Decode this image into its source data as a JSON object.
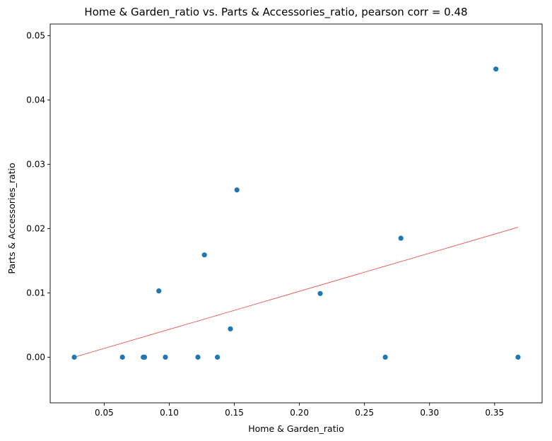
{
  "chart_data": {
    "type": "scatter",
    "title": "Home & Garden_ratio vs. Parts & Accessories_ratio, pearson corr = 0.48",
    "xlabel": "Home & Garden_ratio",
    "ylabel": "Parts & Accessories_ratio",
    "xlim": [
      0.0085,
      0.3865
    ],
    "ylim": [
      -0.0071,
      0.0518
    ],
    "x_ticks": [
      "0.05",
      "0.10",
      "0.15",
      "0.20",
      "0.25",
      "0.30",
      "0.35"
    ],
    "y_ticks": [
      "0.00",
      "0.01",
      "0.02",
      "0.03",
      "0.04",
      "0.05"
    ],
    "grid": false,
    "point_color": "#1f77b4",
    "trend_color": "#e8554e",
    "points": [
      {
        "x": 0.027,
        "y": 0.0
      },
      {
        "x": 0.064,
        "y": 0.0
      },
      {
        "x": 0.08,
        "y": 0.0
      },
      {
        "x": 0.081,
        "y": 0.0
      },
      {
        "x": 0.092,
        "y": 0.0103
      },
      {
        "x": 0.097,
        "y": 0.0
      },
      {
        "x": 0.122,
        "y": 0.0
      },
      {
        "x": 0.127,
        "y": 0.0159
      },
      {
        "x": 0.137,
        "y": 0.0
      },
      {
        "x": 0.147,
        "y": 0.0044
      },
      {
        "x": 0.152,
        "y": 0.026
      },
      {
        "x": 0.216,
        "y": 0.0099
      },
      {
        "x": 0.266,
        "y": 0.0
      },
      {
        "x": 0.278,
        "y": 0.0185
      },
      {
        "x": 0.351,
        "y": 0.0448
      },
      {
        "x": 0.368,
        "y": 0.0
      }
    ],
    "trend_line": {
      "x": [
        0.027,
        0.368
      ],
      "y": [
        0.0,
        0.0202
      ]
    }
  }
}
